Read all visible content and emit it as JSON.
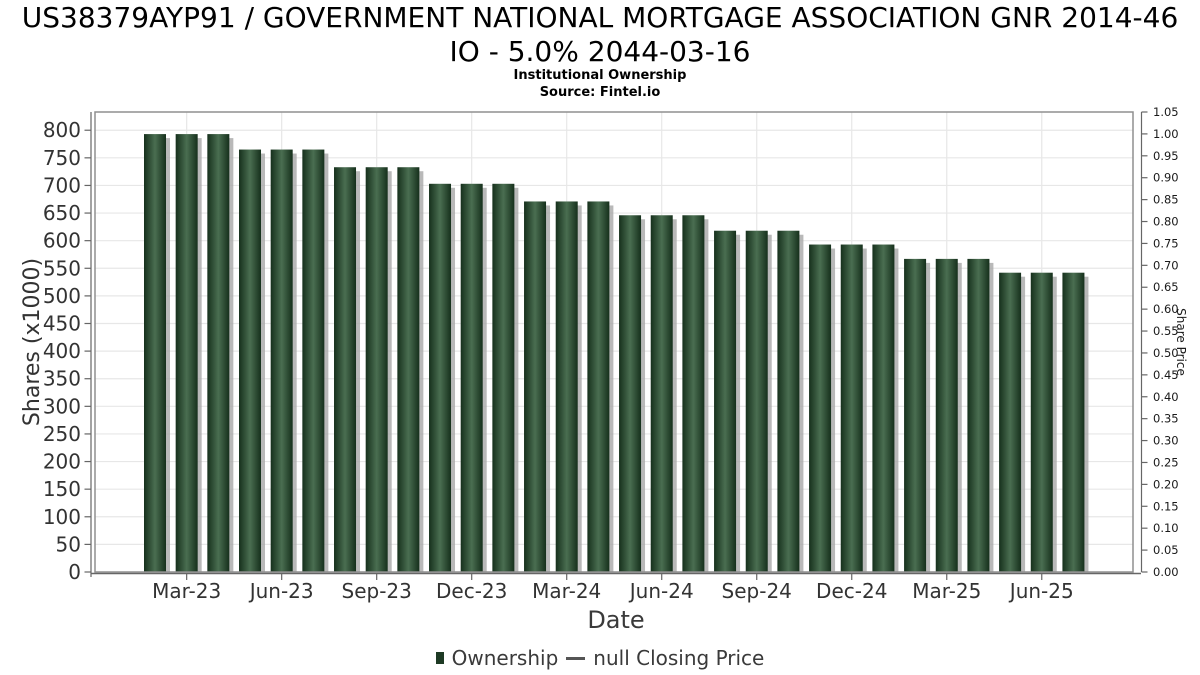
{
  "header": {
    "title_line1": "US38379AYP91 / GOVERNMENT NATIONAL MORTGAGE ASSOCIATION GNR 2014-46",
    "title_line2": "IO - 5.0% 2044-03-16",
    "subtitle": "Institutional Ownership",
    "source": "Source: Fintel.io"
  },
  "legend": {
    "ownership_label": "Ownership",
    "price_label": "null Closing Price",
    "ownership_color": "#1e3a24",
    "price_line_color": "#555555"
  },
  "chart_data": {
    "type": "bar",
    "title": "US38379AYP91 / GOVERNMENT NATIONAL MORTGAGE ASSOCIATION GNR 2014-46 IO - 5.0% 2044-03-16",
    "subtitle": "Institutional Ownership",
    "source": "Source: Fintel.io",
    "xlabel": "Date",
    "ylabel_left": "Shares (x1000)",
    "ylabel_right": "Share Price",
    "x": [
      "Feb-23",
      "Mar-23",
      "Apr-23",
      "May-23",
      "Jun-23",
      "Jul-23",
      "Aug-23",
      "Sep-23",
      "Oct-23",
      "Nov-23",
      "Dec-23",
      "Jan-24",
      "Feb-24",
      "Mar-24",
      "Apr-24",
      "May-24",
      "Jun-24",
      "Jul-24",
      "Aug-24",
      "Sep-24",
      "Oct-24",
      "Nov-24",
      "Dec-24",
      "Jan-25",
      "Feb-25",
      "Mar-25",
      "Apr-25",
      "May-25",
      "Jun-25",
      "Jul-25"
    ],
    "series": [
      {
        "name": "Ownership",
        "axis": "left",
        "values": [
          793,
          793,
          793,
          765,
          765,
          765,
          733,
          733,
          733,
          703,
          703,
          703,
          671,
          671,
          671,
          646,
          646,
          646,
          618,
          618,
          618,
          593,
          593,
          593,
          567,
          567,
          567,
          542,
          542,
          542
        ]
      },
      {
        "name": "null Closing Price",
        "axis": "right",
        "values": []
      }
    ],
    "x_tick_labels": [
      "Mar-23",
      "Jun-23",
      "Sep-23",
      "Dec-23",
      "Mar-24",
      "Jun-24",
      "Sep-24",
      "Dec-24",
      "Mar-25",
      "Jun-25"
    ],
    "x_tick_indices": [
      1,
      4,
      7,
      10,
      13,
      16,
      19,
      22,
      25,
      28
    ],
    "ylim_left": [
      0,
      833
    ],
    "y_ticks_left": [
      0,
      50,
      100,
      150,
      200,
      250,
      300,
      350,
      400,
      450,
      500,
      550,
      600,
      650,
      700,
      750,
      800
    ],
    "ylim_right": [
      0,
      1.05
    ],
    "y_ticks_right": [
      0,
      0.05,
      0.1,
      0.15,
      0.2,
      0.25,
      0.3,
      0.35,
      0.4,
      0.45,
      0.5,
      0.55,
      0.6,
      0.65,
      0.7,
      0.75,
      0.8,
      0.85,
      0.9,
      0.95,
      1.0,
      1.05
    ],
    "grid": true,
    "legend_position": "bottom",
    "colors": {
      "bar_edge": "#16301c",
      "bar_mid": "#4a6e51",
      "bar_shadow": "#a8a8a8",
      "gridline": "#e7e7e7",
      "plot_border": "#8f8f8f",
      "axis_line": "#666666",
      "tick_label": "#333333",
      "small_tick_label": "#1a1a1a"
    }
  }
}
